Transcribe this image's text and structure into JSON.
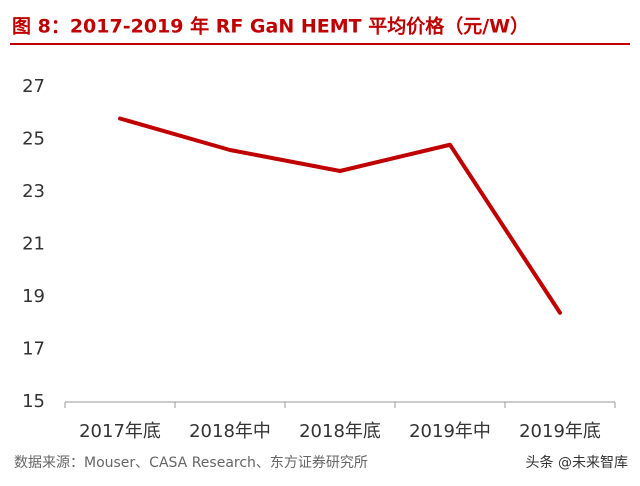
{
  "chart_data": {
    "type": "line",
    "title": "图 8：2017-2019 年 RF GaN HEMT  平均价格（元/W）",
    "categories": [
      "2017年底",
      "2018年中",
      "2018年底",
      "2019年中",
      "2019年底"
    ],
    "series": [
      {
        "name": "平均价格",
        "color": "#c00000",
        "values": [
          25.8,
          24.6,
          23.8,
          24.8,
          18.4
        ]
      }
    ],
    "ylim": [
      15,
      27
    ],
    "yticks": [
      15,
      17,
      19,
      21,
      23,
      25,
      27
    ],
    "grid": false,
    "source": "数据来源：Mouser、CASA Research、东方证券研究所",
    "watermark": "头条 @未来智库"
  }
}
